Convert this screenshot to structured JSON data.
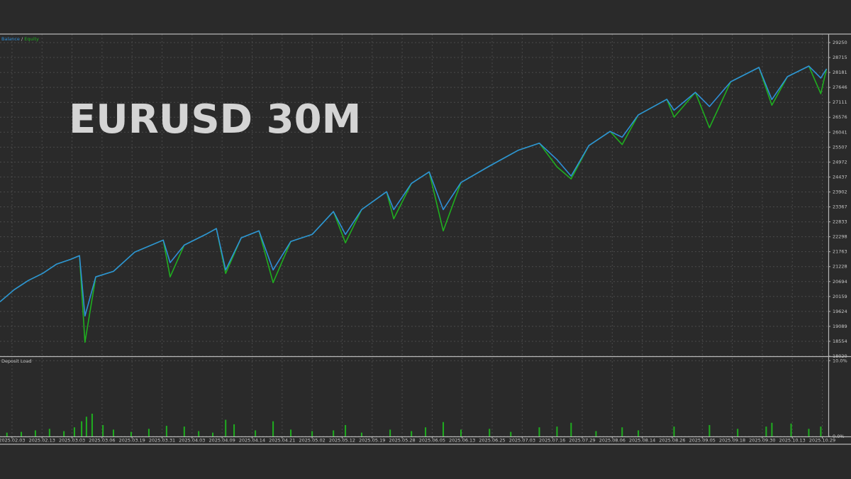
{
  "chart_data": [
    {
      "type": "line",
      "title": "EURUSD 30M",
      "legend_separator": " / ",
      "grid": true,
      "xlim": [
        -0.4,
        27.2
      ],
      "x": [
        -0.4,
        0.07,
        0.54,
        1.02,
        1.49,
        1.96,
        2.25,
        2.43,
        2.79,
        3.38,
        4.09,
        5.04,
        5.27,
        5.74,
        6.45,
        6.81,
        7.12,
        7.64,
        8.23,
        8.7,
        9.29,
        10.0,
        10.71,
        11.11,
        11.65,
        12.48,
        12.72,
        13.31,
        13.9,
        14.37,
        14.96,
        15.91,
        16.86,
        17.57,
        18.16,
        18.63,
        19.22,
        19.93,
        20.33,
        20.87,
        21.82,
        22.06,
        22.77,
        23.24,
        23.95,
        24.89,
        25.32,
        25.84,
        26.55,
        26.95,
        27.14
      ],
      "series": [
        {
          "name": "Equity",
          "color": "#1fae1f",
          "values": [
            19970,
            20400,
            20730,
            20985,
            21320,
            21490,
            21620,
            18520,
            20860,
            21060,
            21750,
            22180,
            20860,
            22000,
            22380,
            22590,
            20985,
            22260,
            22510,
            20655,
            22130,
            22380,
            23200,
            22080,
            23270,
            23910,
            22940,
            24210,
            24620,
            22510,
            24240,
            24830,
            25390,
            25650,
            24800,
            24370,
            25560,
            26070,
            25600,
            26660,
            27220,
            26580,
            27470,
            26200,
            27850,
            28360,
            27010,
            28030,
            28410,
            27420,
            28310
          ]
        },
        {
          "name": "Balance",
          "color": "#2f8fd8",
          "values": [
            19970,
            20400,
            20730,
            20985,
            21320,
            21490,
            21620,
            19460,
            20860,
            21060,
            21750,
            22180,
            21370,
            22000,
            22380,
            22590,
            21110,
            22260,
            22510,
            21110,
            22130,
            22380,
            23200,
            22380,
            23270,
            23910,
            23270,
            24210,
            24620,
            23270,
            24240,
            24830,
            25390,
            25650,
            25060,
            24470,
            25560,
            26070,
            25860,
            26660,
            27220,
            26830,
            27470,
            26960,
            27850,
            28360,
            27210,
            28030,
            28410,
            27980,
            28310
          ]
        }
      ],
      "ylim": [
        18020,
        29555
      ],
      "yticks": [
        29250,
        28715,
        28181,
        27646,
        27111,
        26576,
        26041,
        25507,
        24972,
        24437,
        23902,
        23367,
        22833,
        22298,
        21763,
        21228,
        20694,
        20159,
        19624,
        19089,
        18554,
        18020
      ]
    },
    {
      "type": "bar",
      "title": "Deposit Load",
      "grid": true,
      "color": "#1fae1f",
      "xlim": [
        -0.4,
        27.2
      ],
      "x": [
        -0.17,
        0.31,
        0.78,
        1.25,
        1.73,
        2.08,
        2.32,
        2.48,
        2.67,
        3.03,
        3.38,
        3.97,
        4.56,
        5.15,
        5.74,
        6.22,
        6.69,
        7.12,
        7.4,
        8.11,
        8.7,
        9.29,
        10.0,
        10.71,
        11.11,
        11.65,
        12.6,
        13.31,
        13.78,
        14.37,
        14.96,
        15.91,
        16.62,
        17.57,
        18.16,
        18.63,
        19.46,
        20.33,
        20.87,
        22.06,
        23.24,
        24.18,
        25.13,
        25.32,
        25.96,
        26.55,
        26.95
      ],
      "values": [
        0.5,
        0.6,
        0.8,
        1.0,
        0.7,
        1.2,
        2.0,
        2.6,
        3.0,
        1.5,
        0.9,
        0.6,
        1.0,
        1.4,
        1.3,
        0.7,
        0.5,
        2.2,
        1.6,
        0.8,
        2.0,
        0.9,
        0.7,
        0.8,
        1.5,
        0.5,
        0.9,
        0.7,
        1.2,
        1.9,
        0.9,
        1.0,
        0.6,
        1.2,
        1.3,
        1.8,
        0.7,
        1.2,
        0.8,
        1.3,
        1.5,
        1.0,
        1.3,
        1.8,
        1.7,
        1.0,
        1.3
      ],
      "ylim": [
        0,
        10.4
      ],
      "yticks": [
        {
          "value": 10,
          "label": "10.0%"
        },
        {
          "value": 0,
          "label": "0.0%"
        }
      ],
      "xticks": [
        {
          "value": 0,
          "label": "2025.02.03"
        },
        {
          "value": 1,
          "label": "2025.02.13"
        },
        {
          "value": 2,
          "label": "2025.03.03"
        },
        {
          "value": 3,
          "label": "2025.03.06"
        },
        {
          "value": 4,
          "label": "2025.03.19"
        },
        {
          "value": 5,
          "label": "2025.03.31"
        },
        {
          "value": 6,
          "label": "2025.04.03"
        },
        {
          "value": 7,
          "label": "2025.04.09"
        },
        {
          "value": 8,
          "label": "2025.04.14"
        },
        {
          "value": 9,
          "label": "2025.04.21"
        },
        {
          "value": 10,
          "label": "2025.05.02"
        },
        {
          "value": 11,
          "label": "2025.05.12"
        },
        {
          "value": 12,
          "label": "2025.05.19"
        },
        {
          "value": 13,
          "label": "2025.05.28"
        },
        {
          "value": 14,
          "label": "2025.06.05"
        },
        {
          "value": 15,
          "label": "2025.06.13"
        },
        {
          "value": 16,
          "label": "2025.06.25"
        },
        {
          "value": 17,
          "label": "2025.07.03"
        },
        {
          "value": 18,
          "label": "2025.07.16"
        },
        {
          "value": 19,
          "label": "2025.07.29"
        },
        {
          "value": 20,
          "label": "2025.08.06"
        },
        {
          "value": 21,
          "label": "2025.08.14"
        },
        {
          "value": 22,
          "label": "2025.08.26"
        },
        {
          "value": 23,
          "label": "2025.09.05"
        },
        {
          "value": 24,
          "label": "2025.09.18"
        },
        {
          "value": 25,
          "label": "2025.09.30"
        },
        {
          "value": 26,
          "label": "2025.10.13"
        },
        {
          "value": 27,
          "label": "2025.10.29"
        }
      ]
    }
  ]
}
